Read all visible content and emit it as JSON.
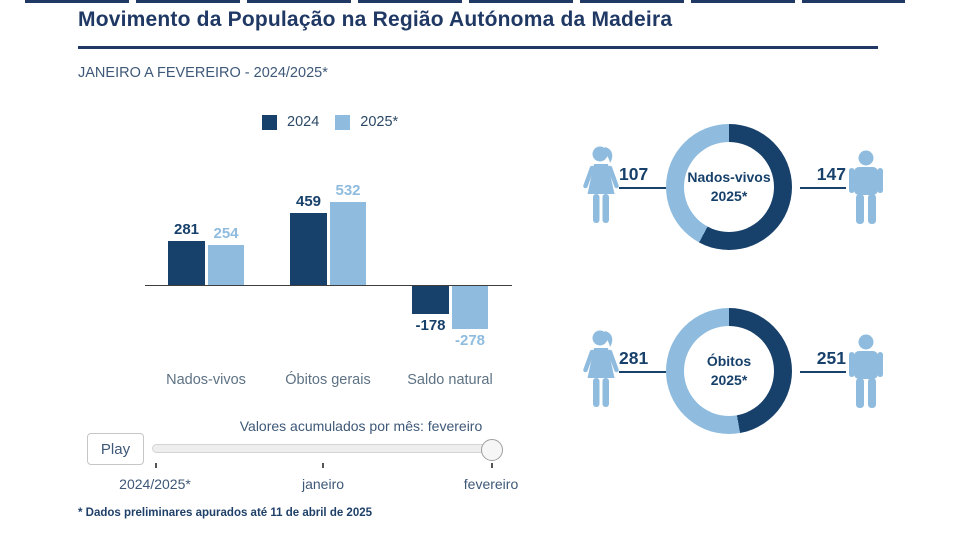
{
  "page": {
    "title": "Movimento da População na Região Autónoma da Madeira",
    "subtitle": "JANEIRO A FEVEREIRO - 2024/2025*",
    "footnote": "* Dados preliminares apurados até 11 de abril de 2025"
  },
  "colors": {
    "dark_navy": "#17416b",
    "light_blue": "#8fbcde",
    "title_navy": "#1f3864",
    "muted_text": "#3e5878",
    "category_text": "#5e7284"
  },
  "icons": {
    "female": "female-pictogram",
    "male": "male-pictogram",
    "play": "play-button"
  },
  "chart_data": [
    {
      "type": "bar",
      "title": "",
      "categories": [
        "Nados-vivos",
        "Óbitos gerais",
        "Saldo natural"
      ],
      "series": [
        {
          "name": "2024",
          "color": "#17416b",
          "values": [
            281,
            459,
            -178
          ]
        },
        {
          "name": "2025*",
          "color": "#8fbcde",
          "values": [
            254,
            532,
            -278
          ]
        }
      ],
      "value_labels": [
        [
          281,
          459,
          -178
        ],
        [
          254,
          532,
          -278
        ]
      ],
      "ylim": [
        -278,
        532
      ],
      "gridlines": false,
      "legend_position": "top"
    },
    {
      "type": "pie",
      "subtype": "donut",
      "title_lines": [
        "Nados-vivos",
        "2025*"
      ],
      "labels": [
        "Masculino",
        "Feminino"
      ],
      "values": [
        147,
        107
      ],
      "male_value": 147,
      "female_value": 107,
      "colors": [
        "#17416b",
        "#8fbcde"
      ]
    },
    {
      "type": "pie",
      "subtype": "donut",
      "title_lines": [
        "Óbitos",
        "2025*"
      ],
      "labels": [
        "Masculino",
        "Feminino"
      ],
      "values": [
        251,
        281
      ],
      "male_value": 251,
      "female_value": 281,
      "colors": [
        "#17416b",
        "#8fbcde"
      ]
    }
  ],
  "slider": {
    "caption": "Valores acumulados por mês: fevereiro",
    "play_label": "Play",
    "ticks": [
      "2024/2025*",
      "janeiro",
      "fevereiro"
    ],
    "current_value": "fevereiro"
  }
}
